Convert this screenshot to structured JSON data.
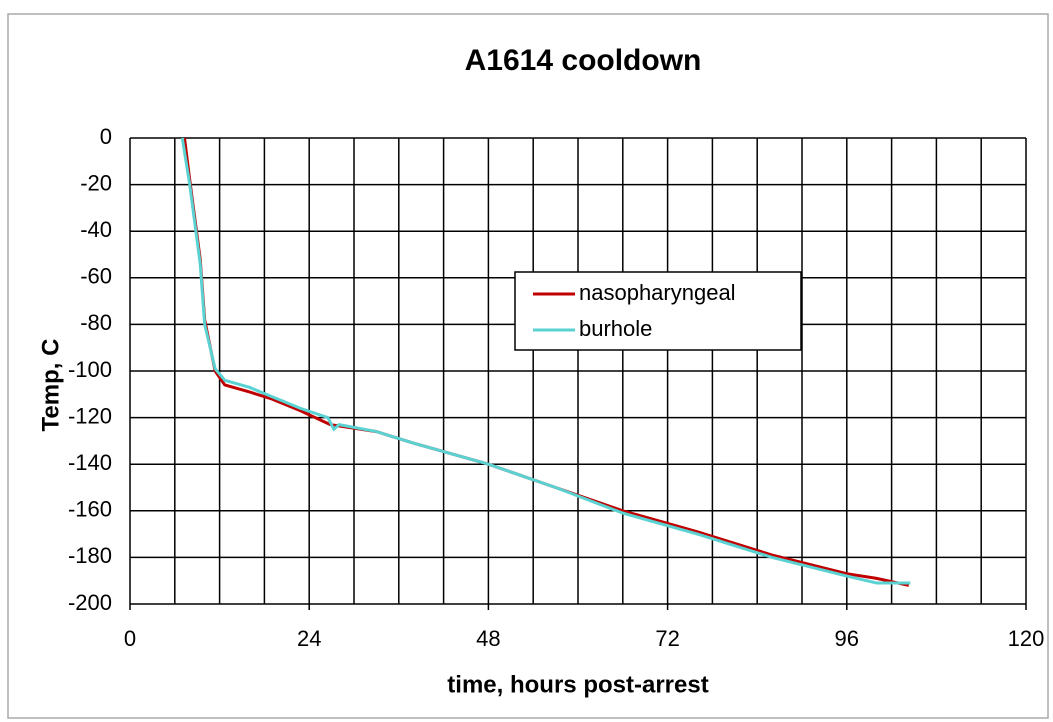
{
  "chart_data": {
    "type": "line",
    "title": "A1614 cooldown",
    "x_label": "time, hours post-arrest",
    "y_label": "Temp, C",
    "xlim": [
      0,
      120
    ],
    "ylim": [
      -200,
      0
    ],
    "xticks": [
      0,
      24,
      48,
      72,
      96,
      120
    ],
    "yticks": [
      0,
      -20,
      -40,
      -60,
      -80,
      -100,
      -120,
      -140,
      -160,
      -180,
      -200
    ],
    "xgrid": [
      0,
      6,
      12,
      18,
      24,
      30,
      36,
      42,
      48,
      54,
      60,
      66,
      72,
      78,
      84,
      90,
      96,
      102,
      108,
      114,
      120
    ],
    "grid": true,
    "legend": "center-right",
    "series": [
      {
        "name": "nasopharyngeal",
        "color": "#c00000",
        "x": [
          7.3,
          8.0,
          9.4,
          10.0,
          11.4,
          12.7,
          16,
          19,
          22.8,
          26.8,
          33,
          38,
          48,
          57,
          66,
          76,
          86,
          96,
          100,
          104.3
        ],
        "values": [
          0,
          -18,
          -52,
          -78,
          -100,
          -106,
          -109,
          -112,
          -117,
          -123,
          -126,
          -131,
          -140,
          -150,
          -160,
          -169,
          -179,
          -187,
          -189,
          -192
        ]
      },
      {
        "name": "burhole",
        "color": "#5ad2d2",
        "x": [
          7.0,
          8.0,
          9.4,
          10.0,
          11.4,
          12.7,
          16,
          19,
          22.8,
          26.5,
          27.3,
          28,
          33,
          38,
          48,
          57,
          66,
          76,
          86,
          96,
          100,
          104.5
        ],
        "values": [
          0,
          -20,
          -54,
          -80,
          -99,
          -104,
          -107,
          -111,
          -116,
          -120,
          -125,
          -123,
          -126,
          -131,
          -140,
          -150,
          -161,
          -170,
          -180,
          -188,
          -191,
          -191
        ]
      }
    ]
  }
}
